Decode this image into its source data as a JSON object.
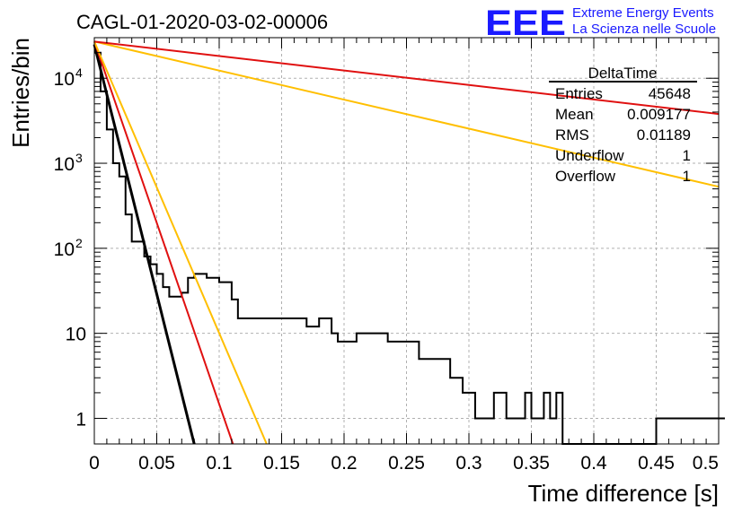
{
  "chart_data": {
    "type": "line",
    "title": "CAGL-01-2020-03-02-00006",
    "xlabel": "Time difference [s]",
    "ylabel": "Entries/bin",
    "xlim": [
      0,
      0.5
    ],
    "ylim": [
      0.5,
      30000
    ],
    "yscale": "log",
    "grid": true,
    "x_ticks": [
      {
        "v": 0,
        "label": "0"
      },
      {
        "v": 0.05,
        "label": "0.05"
      },
      {
        "v": 0.1,
        "label": "0.1"
      },
      {
        "v": 0.15,
        "label": "0.15"
      },
      {
        "v": 0.2,
        "label": "0.2"
      },
      {
        "v": 0.25,
        "label": "0.25"
      },
      {
        "v": 0.3,
        "label": "0.3"
      },
      {
        "v": 0.35,
        "label": "0.35"
      },
      {
        "v": 0.4,
        "label": "0.4"
      },
      {
        "v": 0.45,
        "label": "0.45"
      },
      {
        "v": 0.5,
        "label": "0.5"
      }
    ],
    "y_ticks": [
      {
        "v": 1,
        "label": "1"
      },
      {
        "v": 10,
        "label": "10"
      },
      {
        "v": 100,
        "label": "10",
        "exp": "2"
      },
      {
        "v": 1000,
        "label": "10",
        "exp": "3"
      },
      {
        "v": 10000,
        "label": "10",
        "exp": "4"
      }
    ],
    "histogram": {
      "bin_width": 0.005,
      "color": "#000000",
      "values": [
        20000,
        7000,
        2500,
        1000,
        700,
        250,
        120,
        120,
        80,
        65,
        50,
        35,
        27,
        27,
        30,
        45,
        50,
        50,
        45,
        45,
        40,
        40,
        25,
        15,
        15,
        15,
        15,
        15,
        15,
        15,
        15,
        15,
        15,
        15,
        12,
        12,
        15,
        15,
        10,
        8,
        8,
        8,
        10,
        10,
        10,
        10,
        10,
        8,
        8,
        8,
        8,
        8,
        5,
        5,
        5,
        5,
        5,
        3,
        3,
        2,
        2,
        1,
        1,
        1,
        2,
        2,
        1,
        1,
        1,
        2,
        1,
        1,
        2,
        1,
        2,
        0.3,
        0.3,
        0.3,
        0.3,
        0.3,
        0.3,
        0.3,
        0.3,
        0.3,
        0.3,
        0.3,
        0.3,
        0.3,
        0.3,
        0.3,
        1,
        1,
        1,
        1,
        1,
        1,
        1,
        1,
        1,
        1,
        1
      ]
    },
    "fit_lines": [
      {
        "color": "#000000",
        "width": 3,
        "x": [
          0,
          0.08
        ],
        "y": [
          25000,
          0.5
        ]
      },
      {
        "color": "#e01010",
        "width": 2,
        "x": [
          0,
          0.111
        ],
        "y": [
          27000,
          0.5
        ]
      },
      {
        "color": "#ffbf00",
        "width": 2,
        "x": [
          0,
          0.138
        ],
        "y": [
          27000,
          0.5
        ]
      },
      {
        "color": "#ffbf00",
        "width": 2,
        "x": [
          0,
          0.5
        ],
        "y": [
          27000,
          530
        ]
      },
      {
        "color": "#e01010",
        "width": 2,
        "x": [
          0,
          0.5
        ],
        "y": [
          27000,
          3800
        ]
      }
    ],
    "stats_box": {
      "title": "DeltaTime",
      "rows": [
        {
          "label": "Entries",
          "value": "45648"
        },
        {
          "label": "Mean",
          "value": "0.009177"
        },
        {
          "label": "RMS",
          "value": "0.01189"
        },
        {
          "label": "Underflow",
          "value": "1"
        },
        {
          "label": "Overflow",
          "value": "1"
        }
      ]
    },
    "logo": {
      "text": "EEE",
      "line1": "Extreme Energy Events",
      "line2": "La Scienza nelle Scuole",
      "color": "#1a1aff"
    }
  }
}
